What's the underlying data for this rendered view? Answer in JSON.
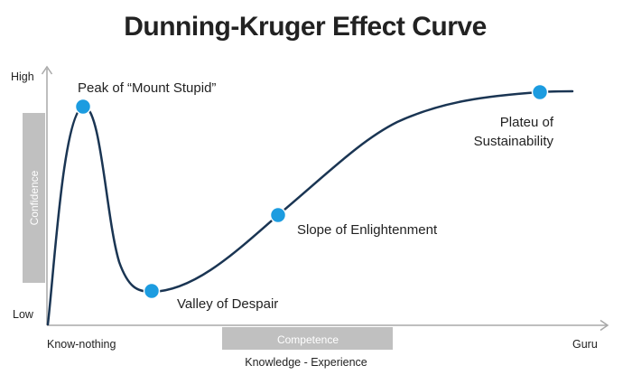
{
  "title": "Dunning-Kruger Effect Curve",
  "y_axis": {
    "high_label": "High",
    "low_label": "Low",
    "box_label": "Confidence"
  },
  "x_axis": {
    "left_label": "Know-nothing",
    "right_label": "Guru",
    "box_label": "Competence",
    "axis_title": "Knowledge - Experience"
  },
  "milestones": [
    {
      "id": "peak",
      "label": "Peak of “Mount Stupid”"
    },
    {
      "id": "valley",
      "label": "Valley of Despair"
    },
    {
      "id": "slope",
      "label": "Slope of Enlightenment"
    },
    {
      "id": "plateau",
      "label_lines": [
        "Plateu of",
        "Sustainability"
      ]
    }
  ],
  "colors": {
    "curve": "#1a3553",
    "marker": "#1c9ce0",
    "marker_stroke": "#ffffff",
    "axis": "#a8a8a8",
    "box_fill": "#c0c0c0",
    "box_text": "#ffffff",
    "text": "#222222"
  }
}
